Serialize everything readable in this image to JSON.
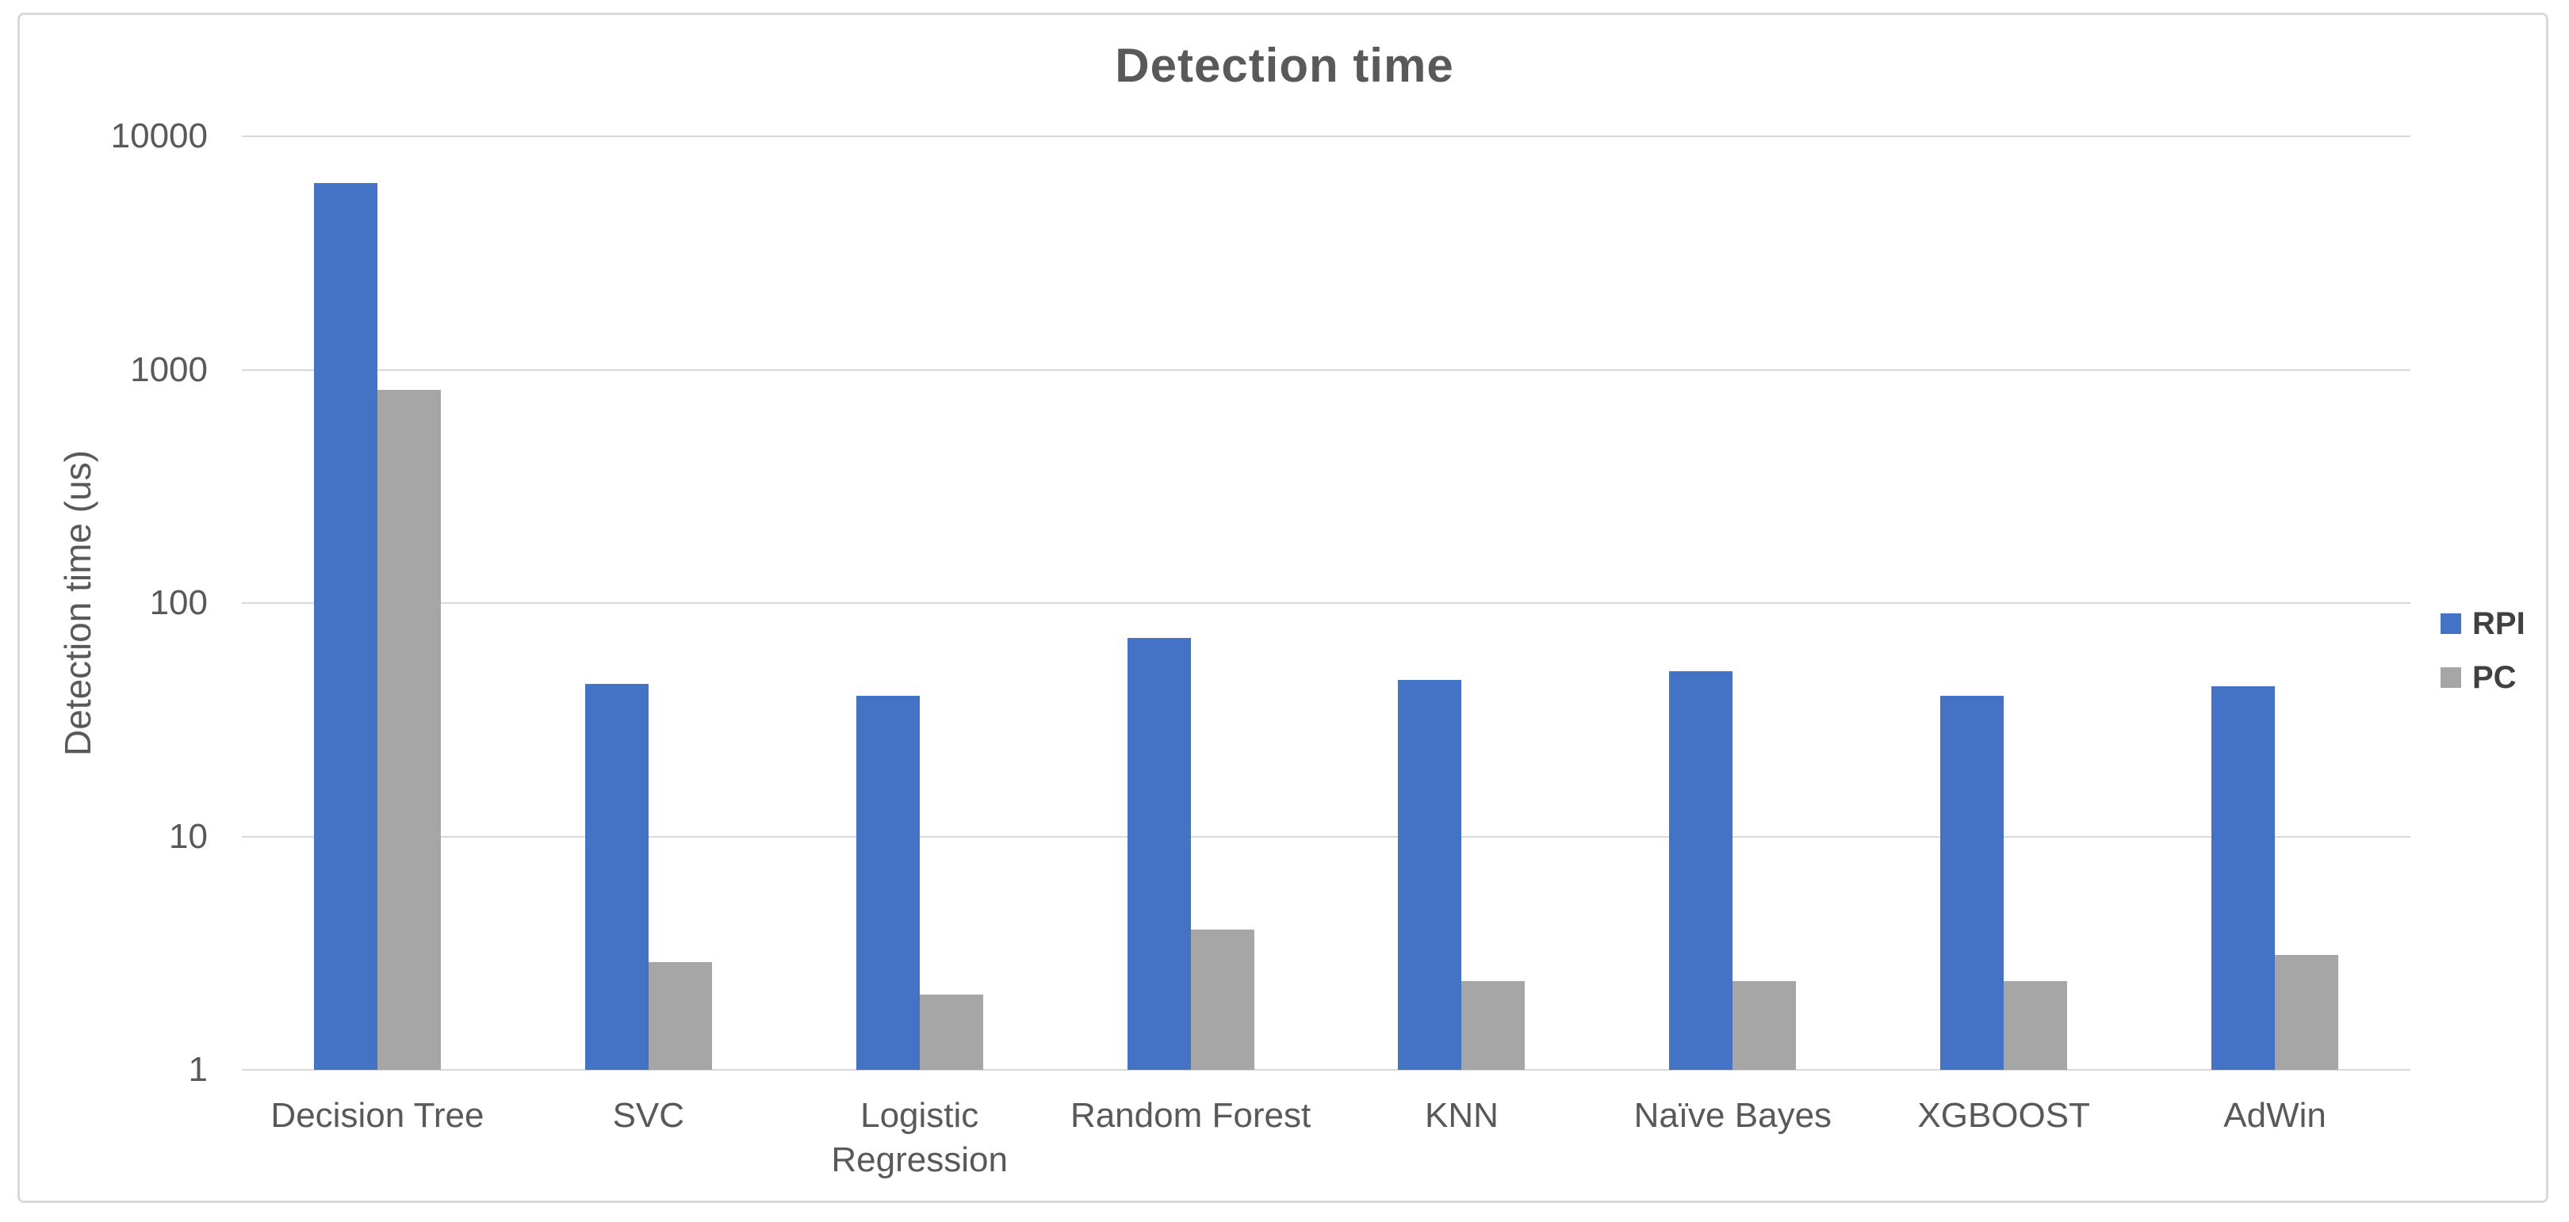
{
  "figure": {
    "title": "Detection time"
  },
  "chart_data": {
    "type": "bar",
    "title": "Detection time",
    "xlabel": "",
    "ylabel": "Detection time (us)",
    "y_scale": "log",
    "ylim": [
      1,
      10000
    ],
    "y_ticks": [
      10000,
      1000,
      100,
      10,
      1
    ],
    "grid": true,
    "legend_position": "right",
    "categories": [
      "Decision Tree",
      "SVC",
      "Logistic Regression",
      "Random Forest",
      "KNN",
      "Naïve Bayes",
      "XGBOOST",
      "AdWin"
    ],
    "series": [
      {
        "name": "RPI",
        "color": "#4472C4",
        "values": [
          6300,
          45,
          40,
          71,
          47,
          51,
          40,
          44
        ]
      },
      {
        "name": "PC",
        "color": "#A6A6A6",
        "values": [
          820,
          2.9,
          2.1,
          4.0,
          2.4,
          2.4,
          2.4,
          3.1
        ]
      }
    ]
  },
  "colors": {
    "text": "#595959",
    "legend_text": "#404040",
    "gridline": "#d9d9d9",
    "background": "#ffffff",
    "border": "#d9d9d9"
  }
}
